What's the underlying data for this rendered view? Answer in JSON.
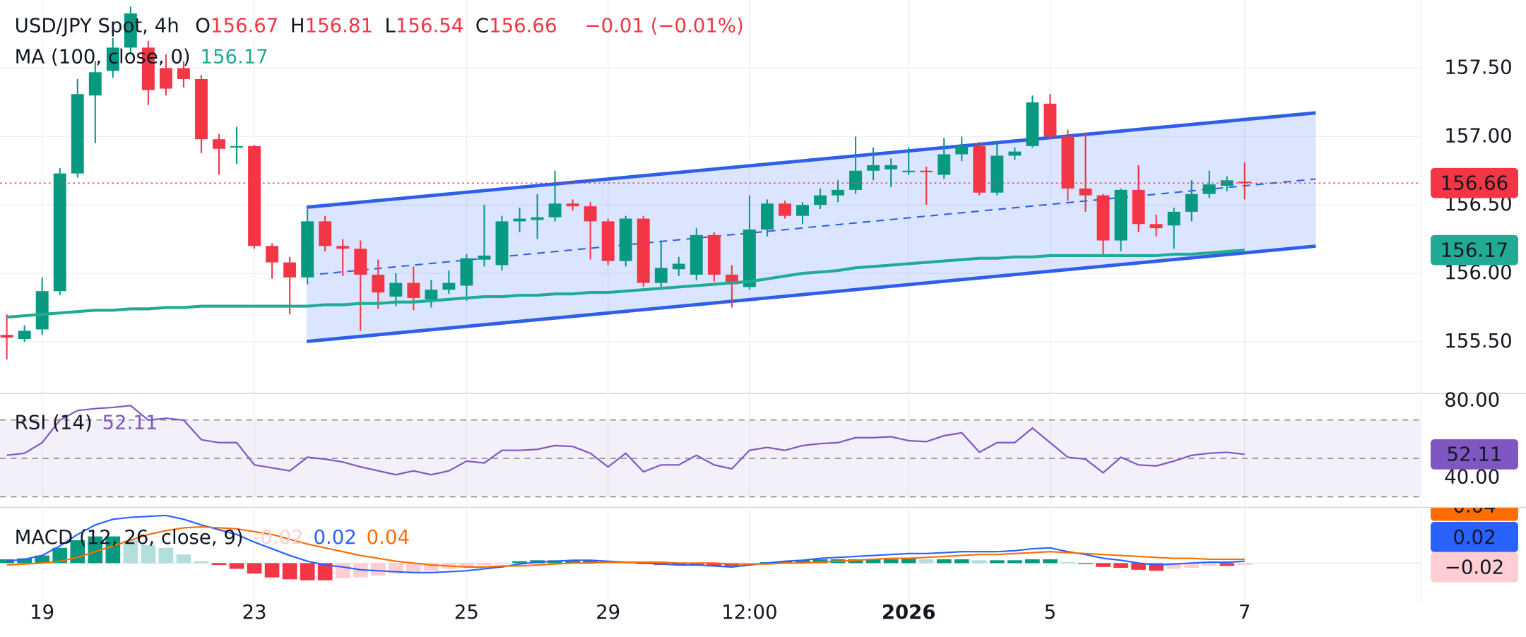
{
  "chart_data": {
    "type": "candlestick",
    "title": "USD/JPY Spot, 4h",
    "ohlc_legend": [
      {
        "label": "O",
        "value": "156.67"
      },
      {
        "label": "H",
        "value": "156.81"
      },
      {
        "label": "L",
        "value": "156.54"
      },
      {
        "label": "C",
        "value": "156.66"
      }
    ],
    "change": "−0.01 (−0.01%)",
    "categories": [
      null,
      null,
      "19",
      null,
      null,
      null,
      null,
      null,
      null,
      null,
      null,
      null,
      null,
      null,
      "23",
      null,
      null,
      null,
      null,
      null,
      null,
      null,
      null,
      null,
      null,
      null,
      "25",
      null,
      null,
      null,
      null,
      null,
      null,
      null,
      "29",
      null,
      null,
      null,
      null,
      null,
      null,
      null,
      "12:00",
      null,
      null,
      null,
      null,
      null,
      null,
      null,
      null,
      "2026",
      null,
      null,
      null,
      null,
      null,
      null,
      null,
      "5",
      null,
      null,
      null,
      null,
      null,
      null,
      null,
      null,
      null,
      null,
      "7"
    ],
    "open": [
      155.55,
      155.52,
      155.59,
      155.87,
      156.73,
      157.3,
      157.48,
      157.65,
      157.65,
      157.5,
      157.5,
      157.42,
      156.98,
      156.92,
      156.93,
      156.2,
      156.08,
      155.97,
      156.38,
      156.2,
      156.18,
      155.99,
      155.83,
      155.93,
      155.81,
      155.88,
      155.91,
      156.1,
      156.06,
      156.38,
      156.39,
      156.41,
      156.51,
      156.49,
      156.38,
      156.09,
      156.4,
      155.93,
      156.03,
      155.99,
      156.28,
      155.99,
      155.9,
      156.32,
      156.51,
      156.42,
      156.5,
      156.57,
      156.61,
      156.75,
      156.76,
      156.74,
      156.75,
      156.72,
      156.87,
      156.93,
      156.59,
      156.86,
      156.93,
      157.24,
      157.0,
      156.62,
      156.57,
      156.24,
      156.61,
      156.36,
      156.35,
      156.45,
      156.58,
      156.64,
      156.67
    ],
    "high": [
      155.7,
      155.62,
      155.97,
      156.77,
      157.42,
      157.55,
      157.72,
      157.95,
      157.7,
      157.6,
      157.55,
      157.45,
      157.02,
      157.07,
      156.94,
      156.22,
      156.12,
      156.47,
      156.42,
      156.25,
      156.24,
      156.1,
      156.0,
      156.05,
      155.95,
      156.02,
      156.14,
      156.5,
      156.42,
      156.48,
      156.58,
      156.75,
      156.54,
      156.52,
      156.4,
      156.42,
      156.42,
      156.24,
      156.12,
      156.33,
      156.3,
      156.06,
      156.57,
      156.54,
      156.53,
      156.52,
      156.62,
      156.68,
      157.0,
      156.92,
      156.84,
      156.92,
      156.78,
      156.99,
      157.0,
      156.96,
      156.96,
      156.92,
      157.3,
      157.31,
      157.05,
      157.03,
      156.58,
      156.62,
      156.79,
      156.43,
      156.48,
      156.68,
      156.75,
      156.71,
      156.81
    ],
    "low": [
      155.37,
      155.5,
      155.55,
      155.84,
      156.7,
      156.95,
      157.43,
      157.6,
      157.23,
      157.3,
      157.36,
      156.88,
      156.72,
      156.8,
      156.18,
      155.96,
      155.7,
      155.92,
      156.16,
      155.98,
      155.58,
      155.74,
      155.76,
      155.73,
      155.75,
      155.85,
      155.8,
      156.05,
      156.02,
      156.3,
      156.25,
      156.38,
      156.46,
      156.1,
      156.06,
      156.05,
      155.9,
      155.9,
      155.98,
      155.95,
      155.94,
      155.75,
      155.88,
      156.27,
      156.4,
      156.36,
      156.47,
      156.52,
      156.58,
      156.68,
      156.63,
      156.72,
      156.5,
      156.69,
      156.82,
      156.57,
      156.57,
      156.83,
      156.92,
      156.98,
      156.53,
      156.45,
      156.14,
      156.16,
      156.3,
      156.27,
      156.18,
      156.38,
      156.55,
      156.6,
      156.54
    ],
    "close": [
      155.53,
      155.58,
      155.87,
      156.73,
      157.31,
      157.47,
      157.65,
      157.9,
      157.34,
      157.35,
      157.42,
      156.98,
      156.91,
      156.93,
      156.2,
      156.08,
      155.97,
      156.38,
      156.2,
      156.18,
      155.99,
      155.86,
      155.93,
      155.82,
      155.88,
      155.93,
      156.11,
      156.13,
      156.38,
      156.4,
      156.41,
      156.51,
      156.49,
      156.38,
      156.09,
      156.4,
      155.93,
      156.04,
      156.07,
      156.28,
      155.99,
      155.92,
      156.32,
      156.51,
      156.42,
      156.5,
      156.57,
      156.61,
      156.75,
      156.79,
      156.79,
      156.75,
      156.74,
      156.87,
      156.93,
      156.59,
      156.86,
      156.89,
      157.25,
      157.0,
      156.62,
      156.57,
      156.24,
      156.61,
      156.36,
      156.33,
      156.45,
      156.58,
      156.65,
      156.68,
      156.66
    ],
    "up_color": "#089981",
    "down_color": "#f23645",
    "ylim": [
      155.125,
      157.998
    ],
    "yticks": [
      {
        "value": 155.5,
        "label": "155.50"
      },
      {
        "value": 156,
        "label": "156.00"
      },
      {
        "value": 156.5,
        "label": "156.50"
      },
      {
        "value": 157,
        "label": "157.00"
      },
      {
        "value": 157.5,
        "label": "157.50"
      }
    ],
    "grid": true,
    "last_price_label": "156.66",
    "ma": {
      "name": "MA (100, close, 0)",
      "value_label": "156.17",
      "color": "#22ab94",
      "values": [
        155.68,
        155.69,
        155.7,
        155.71,
        155.72,
        155.73,
        155.73,
        155.74,
        155.74,
        155.75,
        155.75,
        155.76,
        155.76,
        155.76,
        155.76,
        155.76,
        155.76,
        155.76,
        155.77,
        155.77,
        155.78,
        155.78,
        155.79,
        155.79,
        155.8,
        155.81,
        155.82,
        155.83,
        155.83,
        155.84,
        155.84,
        155.85,
        155.85,
        155.86,
        155.86,
        155.87,
        155.88,
        155.89,
        155.9,
        155.91,
        155.92,
        155.93,
        155.94,
        155.96,
        155.98,
        156.0,
        156.01,
        156.02,
        156.04,
        156.05,
        156.06,
        156.07,
        156.08,
        156.09,
        156.1,
        156.11,
        156.11,
        156.12,
        156.12,
        156.13,
        156.13,
        156.13,
        156.13,
        156.13,
        156.13,
        156.13,
        156.14,
        156.14,
        156.15,
        156.16,
        156.17
      ]
    },
    "rsi": {
      "name": "RSI (14)",
      "value_label": "52.11",
      "color": "#7e57c2",
      "values": [
        51.6,
        52.7,
        58.2,
        69.9,
        74.9,
        75.9,
        76.5,
        77.5,
        69.9,
        70.9,
        69.9,
        59.7,
        58.2,
        58.2,
        46.6,
        45.1,
        43.5,
        50.6,
        49.6,
        48.1,
        45.6,
        43.5,
        41.5,
        43.5,
        41.5,
        43.5,
        48.6,
        47.6,
        54.2,
        54.2,
        54.7,
        56.7,
        56.2,
        52.7,
        45.6,
        52.7,
        43.0,
        46.6,
        46.6,
        51.6,
        46.6,
        44.6,
        54.2,
        55.7,
        54.2,
        56.7,
        57.7,
        58.2,
        60.8,
        60.8,
        61.3,
        59.2,
        58.7,
        61.8,
        63.3,
        53.2,
        58.2,
        58.2,
        65.8,
        58.2,
        50.6,
        49.6,
        42.5,
        50.6,
        46.6,
        46.1,
        48.6,
        51.6,
        52.7,
        53.2,
        52.11
      ],
      "ylim": [
        25.3,
        83.5
      ],
      "yticks": [
        {
          "value": 40,
          "label": "40.00"
        },
        {
          "value": 80,
          "label": "80.00"
        }
      ],
      "bands": [
        70,
        50,
        30
      ]
    },
    "macd": {
      "name": "MACD (12, 26, close, 9)",
      "ylim": [
        -0.42,
        0.58
      ],
      "histogram": {
        "value_label": "-0.02",
        "box_label": "−0.02",
        "colors": [
          "#089981",
          "#b2dfdb",
          "#f23645",
          "#ffcdd2"
        ],
        "values": [
          0.04,
          0.05,
          0.08,
          0.16,
          0.24,
          0.28,
          0.28,
          0.24,
          0.19,
          0.16,
          0.09,
          0.02,
          -0.02,
          -0.06,
          -0.11,
          -0.15,
          -0.17,
          -0.18,
          -0.18,
          -0.16,
          -0.15,
          -0.13,
          -0.11,
          -0.1,
          -0.08,
          -0.06,
          -0.04,
          -0.02,
          -0.01,
          0.02,
          0.03,
          0.03,
          0.03,
          0.03,
          0.01,
          0,
          -0.01,
          -0.02,
          -0.02,
          -0.02,
          -0.03,
          -0.03,
          -0.01,
          0.01,
          0.02,
          0.03,
          0.04,
          0.04,
          0.04,
          0.04,
          0.04,
          0.05,
          0.04,
          0.04,
          0.04,
          0.03,
          0.03,
          0.03,
          0.04,
          0.04,
          0.01,
          -0.01,
          -0.04,
          -0.05,
          -0.07,
          -0.08,
          -0.06,
          -0.05,
          -0.03,
          -0.03,
          -0.02
        ]
      },
      "series": [
        {
          "value_label": "0.02",
          "color": "#2962ff",
          "values": [
            0.02,
            0.04,
            0.08,
            0.18,
            0.3,
            0.4,
            0.46,
            0.48,
            0.49,
            0.5,
            0.46,
            0.4,
            0.35,
            0.3,
            0.22,
            0.15,
            0.08,
            0.02,
            -0.02,
            -0.04,
            -0.07,
            -0.08,
            -0.09,
            -0.1,
            -0.1,
            -0.09,
            -0.08,
            -0.06,
            -0.04,
            -0.01,
            0.01,
            0.02,
            0.03,
            0.03,
            0.02,
            0.01,
            0,
            -0.01,
            -0.02,
            -0.02,
            -0.03,
            -0.04,
            -0.02,
            0,
            0.02,
            0.03,
            0.05,
            0.06,
            0.07,
            0.08,
            0.09,
            0.1,
            0.1,
            0.11,
            0.12,
            0.12,
            0.12,
            0.13,
            0.15,
            0.16,
            0.12,
            0.09,
            0.05,
            0.03,
            0,
            -0.02,
            -0.01,
            0,
            0.01,
            0.01,
            0.02
          ]
        },
        {
          "value_label": "0.04",
          "color": "#ff6d00",
          "values": [
            -0.02,
            -0.01,
            0,
            0.02,
            0.06,
            0.12,
            0.18,
            0.24,
            0.3,
            0.34,
            0.37,
            0.38,
            0.37,
            0.36,
            0.33,
            0.3,
            0.25,
            0.2,
            0.16,
            0.12,
            0.08,
            0.05,
            0.02,
            0,
            -0.02,
            -0.03,
            -0.04,
            -0.04,
            -0.03,
            -0.03,
            -0.02,
            -0.01,
            0,
            0,
            0.01,
            0.01,
            0.01,
            0.01,
            0,
            0,
            0,
            -0.01,
            -0.01,
            -0.01,
            0,
            0,
            0.01,
            0.02,
            0.03,
            0.04,
            0.05,
            0.05,
            0.06,
            0.07,
            0.08,
            0.09,
            0.09,
            0.1,
            0.11,
            0.12,
            0.11,
            0.1,
            0.09,
            0.08,
            0.07,
            0.06,
            0.05,
            0.05,
            0.04,
            0.04,
            0.04
          ]
        }
      ]
    }
  }
}
